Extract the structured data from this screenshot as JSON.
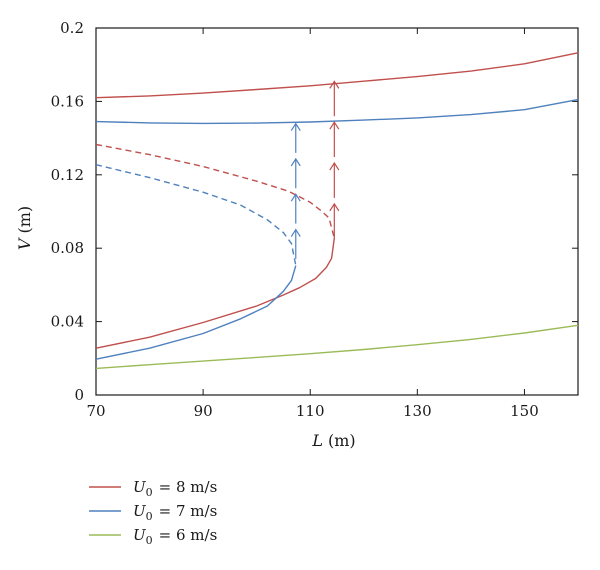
{
  "chart_data": {
    "type": "line",
    "xlabel": "L (m)",
    "xlabel_italic": "L",
    "xlabel_unit": "(m)",
    "ylabel": "V (m)",
    "ylabel_italic": "V",
    "ylabel_unit": "(m)",
    "xlim": [
      70,
      160
    ],
    "ylim": [
      0,
      0.2
    ],
    "xticks": [
      70,
      90,
      110,
      130,
      150
    ],
    "yticks": [
      0,
      0.04,
      0.08,
      0.12,
      0.16,
      0.2
    ],
    "ytick_labels": [
      "0",
      "0.04",
      "0.08",
      "0.12",
      "0.16",
      "0.2"
    ],
    "grid": false,
    "legend_position": "bottom-left, below plot",
    "series": [
      {
        "legend_sub": "0",
        "legend_value": "= 8 m/s",
        "color": "#c0504d",
        "stable_upper": {
          "x": [
            70,
            80,
            90,
            100,
            110,
            120,
            130,
            140,
            150,
            160
          ],
          "y": [
            0.162,
            0.163,
            0.1645,
            0.1665,
            0.1685,
            0.171,
            0.1735,
            0.1765,
            0.1805,
            0.1865
          ]
        },
        "unstable_dashed": {
          "x": [
            70,
            80,
            90,
            100,
            106,
            110,
            112,
            113.5,
            114.5
          ],
          "y": [
            0.1365,
            0.131,
            0.1245,
            0.1165,
            0.111,
            0.105,
            0.1005,
            0.0965,
            0.0855
          ]
        },
        "stable_lower": {
          "x": [
            70,
            80,
            90,
            100,
            105,
            108,
            111,
            113,
            114,
            114.5
          ],
          "y": [
            0.0255,
            0.0315,
            0.0395,
            0.0485,
            0.0545,
            0.0585,
            0.0635,
            0.0695,
            0.0745,
            0.0855
          ]
        },
        "jump_arrows": {
          "x": 114.5,
          "from": 0.083,
          "to": 0.172
        }
      },
      {
        "legend_sub": "0",
        "legend_value": "= 7 m/s",
        "color": "#4f81bd",
        "stable_upper": {
          "x": [
            70,
            80,
            90,
            100,
            110,
            120,
            130,
            140,
            150,
            160
          ],
          "y": [
            0.149,
            0.1483,
            0.148,
            0.1482,
            0.1488,
            0.1498,
            0.151,
            0.1528,
            0.1555,
            0.161
          ]
        },
        "unstable_dashed": {
          "x": [
            70,
            80,
            90,
            97,
            102,
            105,
            106.5,
            107.3
          ],
          "y": [
            0.1255,
            0.1185,
            0.1105,
            0.1035,
            0.0955,
            0.0885,
            0.0825,
            0.0705
          ]
        },
        "stable_lower": {
          "x": [
            70,
            80,
            90,
            97,
            102,
            105,
            106.5,
            107.3
          ],
          "y": [
            0.0195,
            0.0255,
            0.0335,
            0.0415,
            0.0485,
            0.0565,
            0.0625,
            0.0705
          ]
        },
        "jump_arrows": {
          "x": 107.3,
          "from": 0.072,
          "to": 0.149
        }
      },
      {
        "legend_sub": "0",
        "legend_value": "= 6 m/s",
        "color": "#9bbb59",
        "stable_upper": {
          "x": [
            70,
            80,
            90,
            100,
            110,
            120,
            130,
            140,
            150,
            160
          ],
          "y": [
            0.0145,
            0.0165,
            0.0185,
            0.0205,
            0.0225,
            0.0248,
            0.0274,
            0.0303,
            0.0338,
            0.038
          ]
        }
      }
    ]
  }
}
